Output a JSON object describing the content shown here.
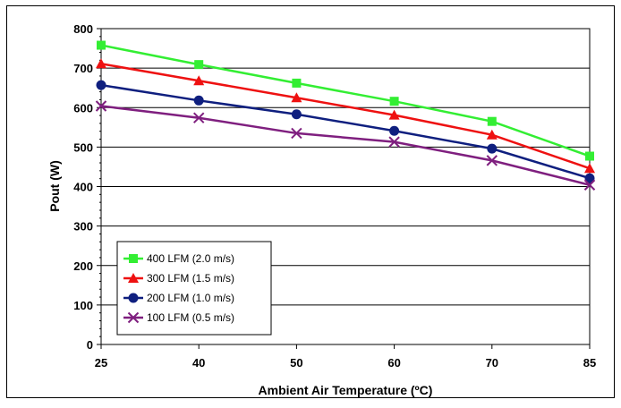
{
  "chart_data": {
    "type": "line",
    "title": "",
    "xlabel": "Ambient Air Temperature (ºC)",
    "ylabel": "Pout (W)",
    "categories": [
      "25",
      "40",
      "50",
      "60",
      "70",
      "85"
    ],
    "ylim": [
      0,
      800
    ],
    "yticks": [
      0,
      100,
      200,
      300,
      400,
      500,
      600,
      700,
      800
    ],
    "grid": "horizontal",
    "legend_position": "bottom-left",
    "series": [
      {
        "name": "400 LFM (2.0 m/s)",
        "color": "#33ee33",
        "marker": "square",
        "values": [
          758,
          709,
          662,
          616,
          565,
          477
        ]
      },
      {
        "name": "300 LFM (1.5 m/s)",
        "color": "#ee1111",
        "marker": "triangle",
        "values": [
          711,
          668,
          625,
          581,
          531,
          446
        ]
      },
      {
        "name": "200 LFM (1.0 m/s)",
        "color": "#0f1f7f",
        "marker": "circle",
        "values": [
          657,
          618,
          583,
          541,
          496,
          421
        ]
      },
      {
        "name": "100 LFM (0.5 m/s)",
        "color": "#7f1f7f",
        "marker": "x",
        "values": [
          604,
          574,
          535,
          513,
          466,
          404
        ]
      }
    ]
  }
}
